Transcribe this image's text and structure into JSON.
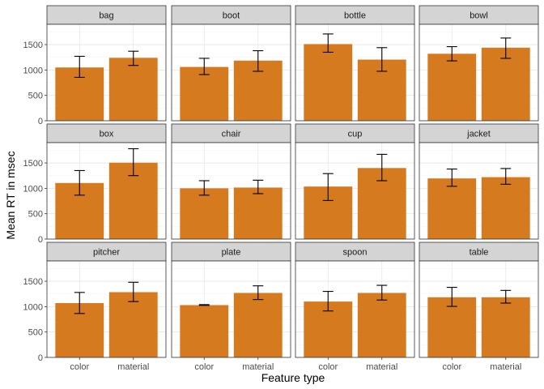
{
  "chart_data": {
    "type": "bar",
    "facet_layout": "4 columns x 3 rows",
    "xlabel": "Feature type",
    "ylabel": "Mean RT in msec",
    "categories": [
      "color",
      "material"
    ],
    "ylim": [
      0,
      1900
    ],
    "y_ticks": [
      0,
      500,
      1000,
      1500
    ],
    "grid": true,
    "bar_color": "#d67a1f",
    "strip_color": "#d4d4d4",
    "error_bars": true,
    "facets": [
      {
        "name": "bag",
        "values": [
          1050,
          1240
        ],
        "ci_low": [
          855,
          1090
        ],
        "ci_high": [
          1270,
          1370
        ]
      },
      {
        "name": "boot",
        "values": [
          1060,
          1185
        ],
        "ci_low": [
          910,
          975
        ],
        "ci_high": [
          1230,
          1380
        ]
      },
      {
        "name": "bottle",
        "values": [
          1510,
          1205
        ],
        "ci_low": [
          1350,
          975
        ],
        "ci_high": [
          1710,
          1440
        ]
      },
      {
        "name": "bowl",
        "values": [
          1320,
          1440
        ],
        "ci_low": [
          1180,
          1230
        ],
        "ci_high": [
          1460,
          1630
        ]
      },
      {
        "name": "box",
        "values": [
          1105,
          1505
        ],
        "ci_low": [
          865,
          1250
        ],
        "ci_high": [
          1350,
          1780
        ]
      },
      {
        "name": "chair",
        "values": [
          1000,
          1015
        ],
        "ci_low": [
          865,
          895
        ],
        "ci_high": [
          1150,
          1160
        ]
      },
      {
        "name": "cup",
        "values": [
          1035,
          1400
        ],
        "ci_low": [
          760,
          1150
        ],
        "ci_high": [
          1290,
          1670
        ]
      },
      {
        "name": "jacket",
        "values": [
          1195,
          1220
        ],
        "ci_low": [
          1040,
          1080
        ],
        "ci_high": [
          1380,
          1390
        ]
      },
      {
        "name": "pitcher",
        "values": [
          1070,
          1285
        ],
        "ci_low": [
          865,
          1100
        ],
        "ci_high": [
          1280,
          1480
        ]
      },
      {
        "name": "plate",
        "values": [
          1030,
          1270
        ],
        "ci_low": [
          1025,
          1140
        ],
        "ci_high": [
          1040,
          1410
        ]
      },
      {
        "name": "spoon",
        "values": [
          1100,
          1270
        ],
        "ci_low": [
          915,
          1130
        ],
        "ci_high": [
          1300,
          1420
        ]
      },
      {
        "name": "table",
        "values": [
          1185,
          1185
        ],
        "ci_low": [
          1005,
          1070
        ],
        "ci_high": [
          1380,
          1320
        ]
      }
    ]
  }
}
